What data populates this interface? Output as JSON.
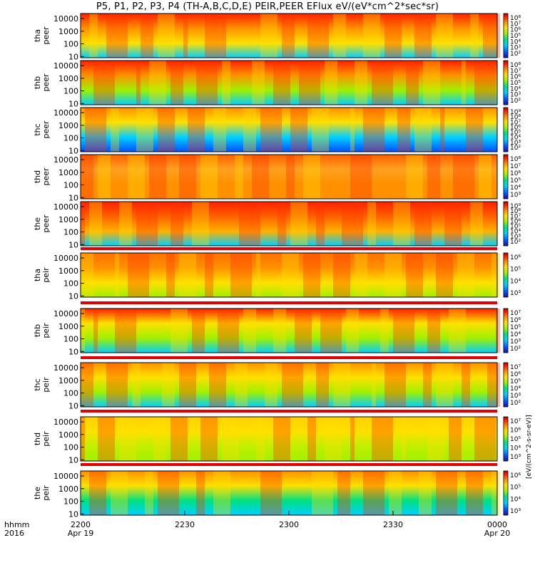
{
  "title": "P5, P1, P2, P3, P4 (TH-A,B,C,D,E) PEIR,PEER EFlux eV/(eV*cm^2*sec*sr)",
  "colorbar_unit_label": "[eV/(cm^2-s-sr-eV)]",
  "colors": {
    "min": "#2010a0",
    "max": "#b00000",
    "spectrum": [
      "#2010a0",
      "#0050ff",
      "#00d0ff",
      "#00e080",
      "#a0f000",
      "#ffe000",
      "#ff9000",
      "#ff2000",
      "#b00000"
    ]
  },
  "chart_data": [
    {
      "type": "heatmap",
      "ylabel": [
        "tha",
        "peer"
      ],
      "yticks": [
        "10000",
        "1000",
        "100",
        "10"
      ],
      "ylim": [
        8,
        25000
      ],
      "yscale": "log",
      "cbar_ticks": [
        "10⁸",
        "10⁷",
        "10⁶",
        "10⁵",
        "10⁴",
        "10³",
        "10²"
      ]
    },
    {
      "type": "heatmap",
      "ylabel": [
        "thb",
        "peer"
      ],
      "yticks": [
        "10000",
        "1000",
        "100",
        "10"
      ],
      "ylim": [
        8,
        25000
      ],
      "yscale": "log",
      "cbar_ticks": [
        "10⁸",
        "10⁷",
        "10⁶",
        "10⁵",
        "10⁴",
        "10³",
        "10²"
      ]
    },
    {
      "type": "heatmap",
      "ylabel": [
        "thc",
        "peer"
      ],
      "yticks": [
        "10000",
        "1000",
        "100",
        "10"
      ],
      "ylim": [
        8,
        25000
      ],
      "yscale": "log",
      "cbar_ticks": [
        "10⁹",
        "10⁸",
        "10⁷",
        "10⁶",
        "10⁵",
        "10⁴",
        "10³",
        "10²"
      ]
    },
    {
      "type": "heatmap",
      "ylabel": [
        "thd",
        "peer"
      ],
      "yticks": [
        "10000",
        "1000",
        "100",
        "10"
      ],
      "ylim": [
        8,
        25000
      ],
      "yscale": "log",
      "cbar_ticks": [
        "10⁸",
        "10⁷",
        "10⁶",
        "10⁵",
        "10⁴",
        "10³"
      ]
    },
    {
      "type": "heatmap",
      "ylabel": [
        "the",
        "peer"
      ],
      "yticks": [
        "10000",
        "1000",
        "100",
        "10"
      ],
      "ylim": [
        8,
        25000
      ],
      "yscale": "log",
      "cbar_ticks": [
        "10⁹",
        "10⁸",
        "10⁷",
        "10⁶",
        "10⁵",
        "10⁴",
        "10³",
        "10²"
      ]
    },
    {
      "type": "heatmap",
      "ylabel": [
        "tha",
        "peir"
      ],
      "yticks": [
        "10000",
        "1000",
        "100",
        "10"
      ],
      "ylim": [
        8,
        25000
      ],
      "yscale": "log",
      "cbar_ticks": [
        "10⁶",
        "10⁵",
        "10⁴",
        "10³"
      ]
    },
    {
      "type": "heatmap",
      "ylabel": [
        "thb",
        "peir"
      ],
      "yticks": [
        "10000",
        "1000",
        "100",
        "10"
      ],
      "ylim": [
        8,
        25000
      ],
      "yscale": "log",
      "cbar_ticks": [
        "10⁷",
        "10⁶",
        "10⁵",
        "10⁴",
        "10³",
        "10²"
      ]
    },
    {
      "type": "heatmap",
      "ylabel": [
        "thc",
        "peir"
      ],
      "yticks": [
        "10000",
        "1000",
        "100",
        "10"
      ],
      "ylim": [
        8,
        25000
      ],
      "yscale": "log",
      "cbar_ticks": [
        "10⁷",
        "10⁶",
        "10⁵",
        "10⁴",
        "10³",
        "10²"
      ]
    },
    {
      "type": "heatmap",
      "ylabel": [
        "thd",
        "peir"
      ],
      "yticks": [
        "10000",
        "1000",
        "100",
        "10"
      ],
      "ylim": [
        8,
        25000
      ],
      "yscale": "log",
      "cbar_ticks": [
        "10⁷",
        "10⁶",
        "10⁵",
        "10⁴",
        "10³"
      ]
    },
    {
      "type": "heatmap",
      "ylabel": [
        "the",
        "peir"
      ],
      "yticks": [
        "10000",
        "1000",
        "100",
        "10"
      ],
      "ylim": [
        8,
        25000
      ],
      "yscale": "log",
      "cbar_ticks": [
        "10⁶",
        "10⁵",
        "10⁴",
        "10³"
      ]
    }
  ],
  "x_axis": {
    "ticks": [
      "2200",
      "2230",
      "2300",
      "2330",
      "0000"
    ],
    "dates": [
      "Apr 19",
      "",
      "",
      "",
      "Apr 20"
    ],
    "left_label_1": "hhmm",
    "left_label_2": "2016"
  }
}
